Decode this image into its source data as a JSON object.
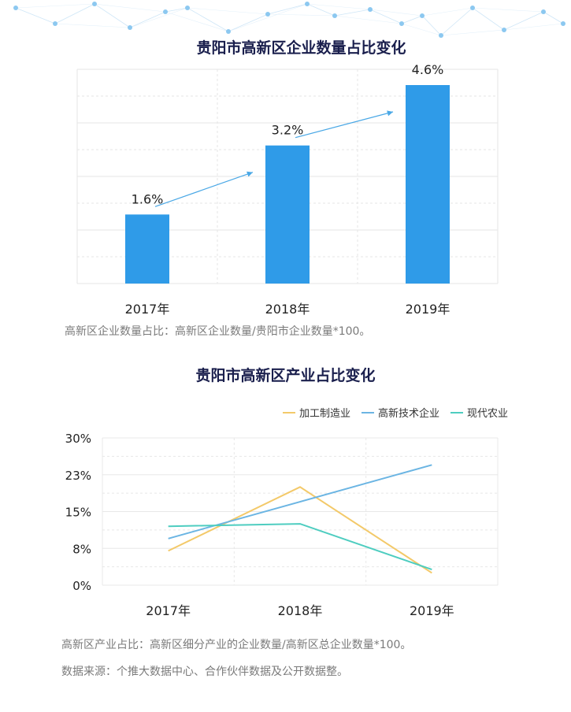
{
  "chart_data": [
    {
      "type": "bar",
      "title": "贵阳市高新区企业数量占比变化",
      "categories": [
        "2017年",
        "2018年",
        "2019年"
      ],
      "values": [
        1.6,
        3.2,
        4.6
      ],
      "value_labels": [
        "1.6%",
        "3.2%",
        "4.6%"
      ],
      "ylim": [
        0,
        4.6
      ],
      "grid": true,
      "bar_color": "#2f9be8",
      "note": "高新区企业数量占比：高新区企业数量/贵阳市企业数量*100。"
    },
    {
      "type": "line",
      "title": "贵阳市高新区产业占比变化",
      "categories": [
        "2017年",
        "2018年",
        "2019年"
      ],
      "series": [
        {
          "name": "加工制造业",
          "values": [
            7,
            20,
            2.5
          ],
          "color": "#f3c969"
        },
        {
          "name": "高新技术企业",
          "values": [
            9.5,
            17,
            24.5
          ],
          "color": "#6bb5e3"
        },
        {
          "name": "现代农业",
          "values": [
            12,
            12.5,
            3.2
          ],
          "color": "#4ecdc0"
        }
      ],
      "yticks": [
        "0%",
        "8%",
        "15%",
        "23%",
        "30%"
      ],
      "ylim": [
        0,
        30
      ],
      "grid": true,
      "legend_position": "top-right",
      "note": "高新区产业占比：高新区细分产业的企业数量/高新区总企业数量*100。",
      "source": "数据来源：个推大数据中心、合作伙伴数据及公开数据整。"
    }
  ]
}
